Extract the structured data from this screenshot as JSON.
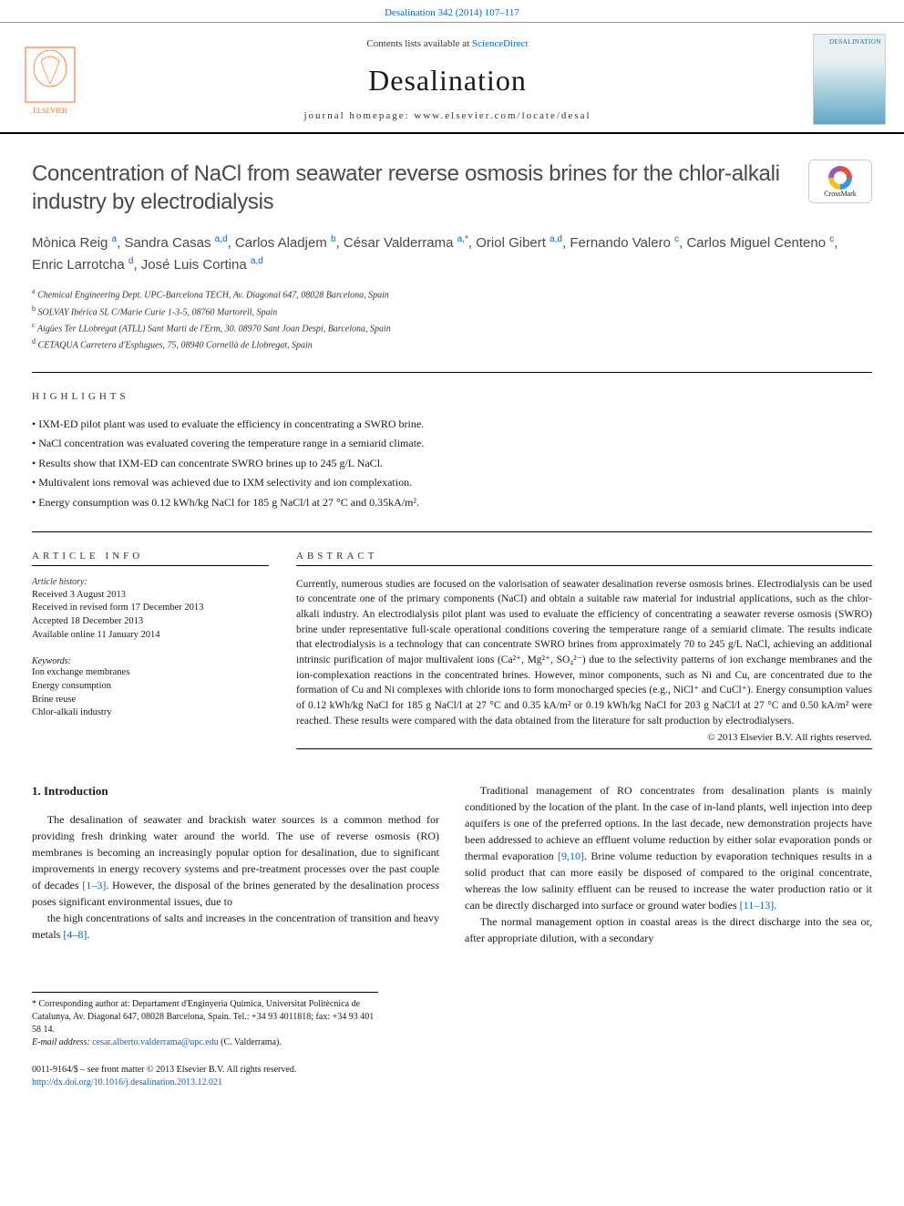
{
  "header": {
    "citation": "Desalination 342 (2014) 107–117",
    "contents_prefix": "Contents lists available at ",
    "contents_link": "ScienceDirect",
    "journal_name": "Desalination",
    "homepage_label": "journal homepage: www.elsevier.com/locate/desal",
    "cover_label": "DESALINATION"
  },
  "logos": {
    "elsevier_color": "#ff6a13",
    "crossmark_label": "CrossMark"
  },
  "title": "Concentration of NaCl from seawater reverse osmosis brines for the chlor-alkali industry by electrodialysis",
  "authors": [
    {
      "name": "Mònica Reig",
      "aff": "a"
    },
    {
      "name": "Sandra Casas",
      "aff": "a,d"
    },
    {
      "name": "Carlos Aladjem",
      "aff": "b"
    },
    {
      "name": "César Valderrama",
      "aff": "a,*"
    },
    {
      "name": "Oriol Gibert",
      "aff": "a,d"
    },
    {
      "name": "Fernando Valero",
      "aff": "c"
    },
    {
      "name": "Carlos Miguel Centeno",
      "aff": "c"
    },
    {
      "name": "Enric Larrotcha",
      "aff": "d"
    },
    {
      "name": "José Luis Cortina",
      "aff": "a,d"
    }
  ],
  "affiliations": [
    {
      "key": "a",
      "text": "Chemical Engineering Dept. UPC-Barcelona TECH, Av. Diagonal 647, 08028 Barcelona, Spain"
    },
    {
      "key": "b",
      "text": "SOLVAY Ibérica SL C/Marie Curie 1-3-5, 08760 Martorell, Spain"
    },
    {
      "key": "c",
      "text": "Aigües Ter LLobregat (ATLL) Sant Martí de l'Erm, 30. 08970 Sant Joan Despí, Barcelona, Spain"
    },
    {
      "key": "d",
      "text": "CETAQUA Carretera d'Esplugues, 75, 08940 Cornellà de Llobregat, Spain"
    }
  ],
  "highlights_label": "HIGHLIGHTS",
  "highlights": [
    "IXM-ED pilot plant was used to evaluate the efficiency in concentrating a SWRO brine.",
    "NaCl concentration was evaluated covering the temperature range in a semiarid climate.",
    "Results show that IXM-ED can concentrate SWRO brines up to 245 g/L NaCl.",
    "Multivalent ions removal was achieved due to IXM selectivity and ion complexation.",
    "Energy consumption was 0.12 kWh/kg NaCl for 185 g NaCl/l at 27 °C and 0.35kA/m²."
  ],
  "article_info_label": "ARTICLE INFO",
  "history": {
    "label": "Article history:",
    "items": [
      "Received 3 August 2013",
      "Received in revised form 17 December 2013",
      "Accepted 18 December 2013",
      "Available online 11 January 2014"
    ]
  },
  "keywords": {
    "label": "Keywords:",
    "items": [
      "Ion exchange membranes",
      "Energy consumption",
      "Brine reuse",
      "Chlor-alkali industry"
    ]
  },
  "abstract_label": "ABSTRACT",
  "abstract": "Currently, numerous studies are focused on the valorisation of seawater desalination reverse osmosis brines. Electrodialysis can be used to concentrate one of the primary components (NaCl) and obtain a suitable raw material for industrial applications, such as the chlor-alkali industry. An electrodialysis pilot plant was used to evaluate the efficiency of concentrating a seawater reverse osmosis (SWRO) brine under representative full-scale operational conditions covering the temperature range of a semiarid climate. The results indicate that electrodialysis is a technology that can concentrate SWRO brines from approximately 70 to 245 g/L NaCl, achieving an additional intrinsic purification of major multivalent ions (Ca²⁺, Mg²⁺, SO₄²⁻) due to the selectivity patterns of ion exchange membranes and the ion-complexation reactions in the concentrated brines. However, minor components, such as Ni and Cu, are concentrated due to the formation of Cu and Ni complexes with chloride ions to form monocharged species (e.g., NiCl⁺ and CuCl⁺). Energy consumption values of 0.12 kWh/kg NaCl for 185 g NaCl/l at 27 °C and 0.35 kA/m² or 0.19 kWh/kg NaCl for 203 g NaCl/l at 27 °C and 0.50 kA/m² were reached. These results were compared with the data obtained from the literature for salt production by electrodialysers.",
  "copyright": "© 2013 Elsevier B.V. All rights reserved.",
  "intro": {
    "heading": "1. Introduction",
    "paragraphs": [
      "The desalination of seawater and brackish water sources is a common method for providing fresh drinking water around the world. The use of reverse osmosis (RO) membranes is becoming an increasingly popular option for desalination, due to significant improvements in energy recovery systems and pre-treatment processes over the past couple of decades [1–3]. However, the disposal of the brines generated by the desalination process poses significant environmental issues, due to",
      "the high concentrations of salts and increases in the concentration of transition and heavy metals [4–8].",
      "Traditional management of RO concentrates from desalination plants is mainly conditioned by the location of the plant. In the case of in-land plants, well injection into deep aquifers is one of the preferred options. In the last decade, new demonstration projects have been addressed to achieve an effluent volume reduction by either solar evaporation ponds or thermal evaporation [9,10]. Brine volume reduction by evaporation techniques results in a solid product that can more easily be disposed of compared to the original concentrate, whereas the low salinity effluent can be reused to increase the water production ratio or it can be directly discharged into surface or ground water bodies [11–13].",
      "The normal management option in coastal areas is the direct discharge into the sea or, after appropriate dilution, with a secondary"
    ],
    "refs": {
      "r1": "[1–3]",
      "r2": "[4–8]",
      "r3": "[9,10]",
      "r4": "[11–13]"
    }
  },
  "footnotes": {
    "corresponding": "* Corresponding author at: Departament d'Enginyeria Química, Universitat Politècnica de Catalunya, Av. Diagonal 647, 08028 Barcelona, Spain. Tel.: +34 93 4011818; fax: +34 93 401 58 14.",
    "email_label": "E-mail address:",
    "email": "cesar.alberto.valderrama@upc.edu",
    "email_person": "(C. Valderrama)."
  },
  "footer": {
    "issn": "0011-9164/$ – see front matter © 2013 Elsevier B.V. All rights reserved.",
    "doi": "http://dx.doi.org/10.1016/j.desalination.2013.12.021"
  },
  "colors": {
    "link": "#0066cc",
    "text": "#1a1a1a",
    "muted": "#4a4a4a"
  }
}
